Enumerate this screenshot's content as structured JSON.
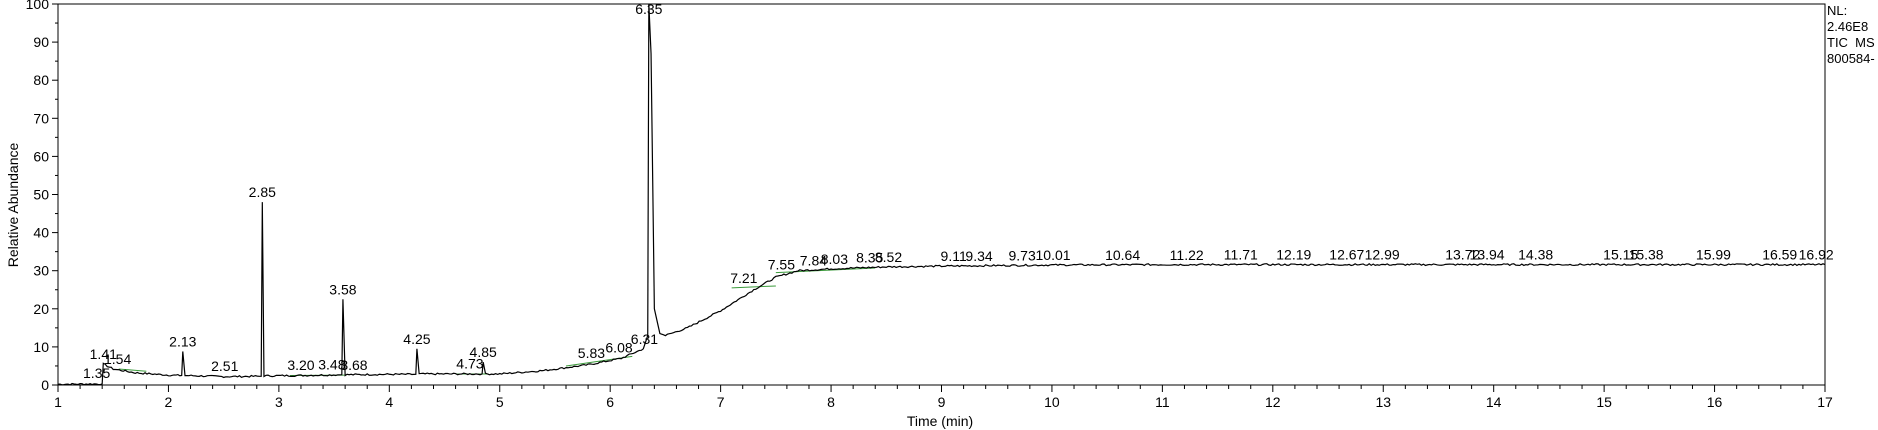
{
  "info_panel": {
    "nl": "NL:",
    "nl_value": "2.46E8",
    "scan_filter": "TIC  MS",
    "file": "800584-"
  },
  "chart_data": {
    "type": "line",
    "xlabel": "Time (min)",
    "ylabel": "Relative Abundance",
    "xlim": [
      1,
      17
    ],
    "ylim": [
      0,
      100
    ],
    "x_ticks": [
      1,
      2,
      3,
      4,
      5,
      6,
      7,
      8,
      9,
      10,
      11,
      12,
      13,
      14,
      15,
      16,
      17
    ],
    "y_ticks": [
      0,
      10,
      20,
      30,
      40,
      50,
      60,
      70,
      80,
      90,
      100
    ],
    "grid": false,
    "line_color": "#000000",
    "baseline_color": "#3a9a3a",
    "peaks": [
      {
        "label": "1.35",
        "x": 1.35,
        "y": 0.5
      },
      {
        "label": "1.41",
        "x": 1.41,
        "y": 5.5
      },
      {
        "label": "1.54",
        "x": 1.54,
        "y": 4.2
      },
      {
        "label": "2.13",
        "x": 2.13,
        "y": 8.8
      },
      {
        "label": "2.51",
        "x": 2.51,
        "y": 2.3
      },
      {
        "label": "2.85",
        "x": 2.85,
        "y": 48.0
      },
      {
        "label": "3.20",
        "x": 3.2,
        "y": 2.6
      },
      {
        "label": "3.48",
        "x": 3.48,
        "y": 2.8
      },
      {
        "label": "3.58",
        "x": 3.58,
        "y": 22.5
      },
      {
        "label": "3.68",
        "x": 3.68,
        "y": 2.6
      },
      {
        "label": "4.25",
        "x": 4.25,
        "y": 9.5
      },
      {
        "label": "4.73",
        "x": 4.73,
        "y": 3.0
      },
      {
        "label": "4.85",
        "x": 4.85,
        "y": 6.0
      },
      {
        "label": "5.83",
        "x": 5.83,
        "y": 5.8
      },
      {
        "label": "6.08",
        "x": 6.08,
        "y": 7.2
      },
      {
        "label": "6.31",
        "x": 6.31,
        "y": 9.5
      },
      {
        "label": "6.35",
        "x": 6.35,
        "y": 100
      },
      {
        "label": "7.21",
        "x": 7.21,
        "y": 25.5
      },
      {
        "label": "7.55",
        "x": 7.55,
        "y": 29.0
      },
      {
        "label": "7.84",
        "x": 7.84,
        "y": 30.0
      },
      {
        "label": "8.03",
        "x": 8.03,
        "y": 30.5
      },
      {
        "label": "8.35",
        "x": 8.35,
        "y": 30.8
      },
      {
        "label": "8.52",
        "x": 8.52,
        "y": 31.0
      },
      {
        "label": "9.11",
        "x": 9.11,
        "y": 31.2
      },
      {
        "label": "9.34",
        "x": 9.34,
        "y": 31.2
      },
      {
        "label": "9.73",
        "x": 9.73,
        "y": 31.4
      },
      {
        "label": "10.01",
        "x": 10.01,
        "y": 31.5
      },
      {
        "label": "10.64",
        "x": 10.64,
        "y": 31.5
      },
      {
        "label": "11.22",
        "x": 11.22,
        "y": 31.5
      },
      {
        "label": "11.71",
        "x": 11.71,
        "y": 31.6
      },
      {
        "label": "12.19",
        "x": 12.19,
        "y": 31.6
      },
      {
        "label": "12.67",
        "x": 12.67,
        "y": 31.6
      },
      {
        "label": "12.99",
        "x": 12.99,
        "y": 31.6
      },
      {
        "label": "13.72",
        "x": 13.72,
        "y": 31.6
      },
      {
        "label": "13.94",
        "x": 13.94,
        "y": 31.6
      },
      {
        "label": "14.38",
        "x": 14.38,
        "y": 31.6
      },
      {
        "label": "15.15",
        "x": 15.15,
        "y": 31.6
      },
      {
        "label": "15.38",
        "x": 15.38,
        "y": 31.6
      },
      {
        "label": "15.99",
        "x": 15.99,
        "y": 31.6
      },
      {
        "label": "16.59",
        "x": 16.59,
        "y": 31.6
      },
      {
        "label": "16.92",
        "x": 16.92,
        "y": 31.6
      }
    ],
    "trace": [
      [
        1.0,
        0.2
      ],
      [
        1.4,
        0.3
      ],
      [
        1.41,
        5.5
      ],
      [
        1.5,
        4.2
      ],
      [
        1.7,
        3.2
      ],
      [
        2.0,
        2.6
      ],
      [
        2.12,
        2.5
      ],
      [
        2.13,
        8.8
      ],
      [
        2.15,
        2.5
      ],
      [
        2.5,
        2.2
      ],
      [
        2.84,
        2.3
      ],
      [
        2.85,
        48.0
      ],
      [
        2.865,
        2.4
      ],
      [
        3.2,
        2.5
      ],
      [
        3.57,
        2.7
      ],
      [
        3.58,
        22.5
      ],
      [
        3.6,
        2.7
      ],
      [
        4.0,
        2.8
      ],
      [
        4.24,
        2.8
      ],
      [
        4.25,
        9.5
      ],
      [
        4.27,
        2.9
      ],
      [
        4.6,
        2.9
      ],
      [
        4.84,
        2.9
      ],
      [
        4.85,
        6.0
      ],
      [
        4.87,
        2.9
      ],
      [
        5.0,
        2.9
      ],
      [
        5.4,
        3.8
      ],
      [
        5.8,
        5.3
      ],
      [
        6.1,
        7.0
      ],
      [
        6.3,
        9.5
      ],
      [
        6.34,
        13.0
      ],
      [
        6.35,
        100
      ],
      [
        6.37,
        87.0
      ],
      [
        6.4,
        20.0
      ],
      [
        6.45,
        13.5
      ],
      [
        6.5,
        13.0
      ],
      [
        6.7,
        15.0
      ],
      [
        7.0,
        19.5
      ],
      [
        7.3,
        25.0
      ],
      [
        7.5,
        28.3
      ],
      [
        7.7,
        30.0
      ],
      [
        8.0,
        30.5
      ],
      [
        8.5,
        31.0
      ],
      [
        9.0,
        31.2
      ],
      [
        10.0,
        31.5
      ],
      [
        11.0,
        31.6
      ],
      [
        12.0,
        31.6
      ],
      [
        13.0,
        31.6
      ],
      [
        14.0,
        31.6
      ],
      [
        15.0,
        31.6
      ],
      [
        16.0,
        31.6
      ],
      [
        17.0,
        31.6
      ]
    ],
    "baselines": [
      [
        1.55,
        4.2,
        1.8,
        3.6
      ],
      [
        3.1,
        2.5,
        3.6,
        2.6
      ],
      [
        4.6,
        2.9,
        4.9,
        2.9
      ],
      [
        5.6,
        5.0,
        6.2,
        7.5
      ],
      [
        7.1,
        25.5,
        7.5,
        26.0
      ],
      [
        7.5,
        29.5,
        8.4,
        30.7
      ]
    ]
  }
}
